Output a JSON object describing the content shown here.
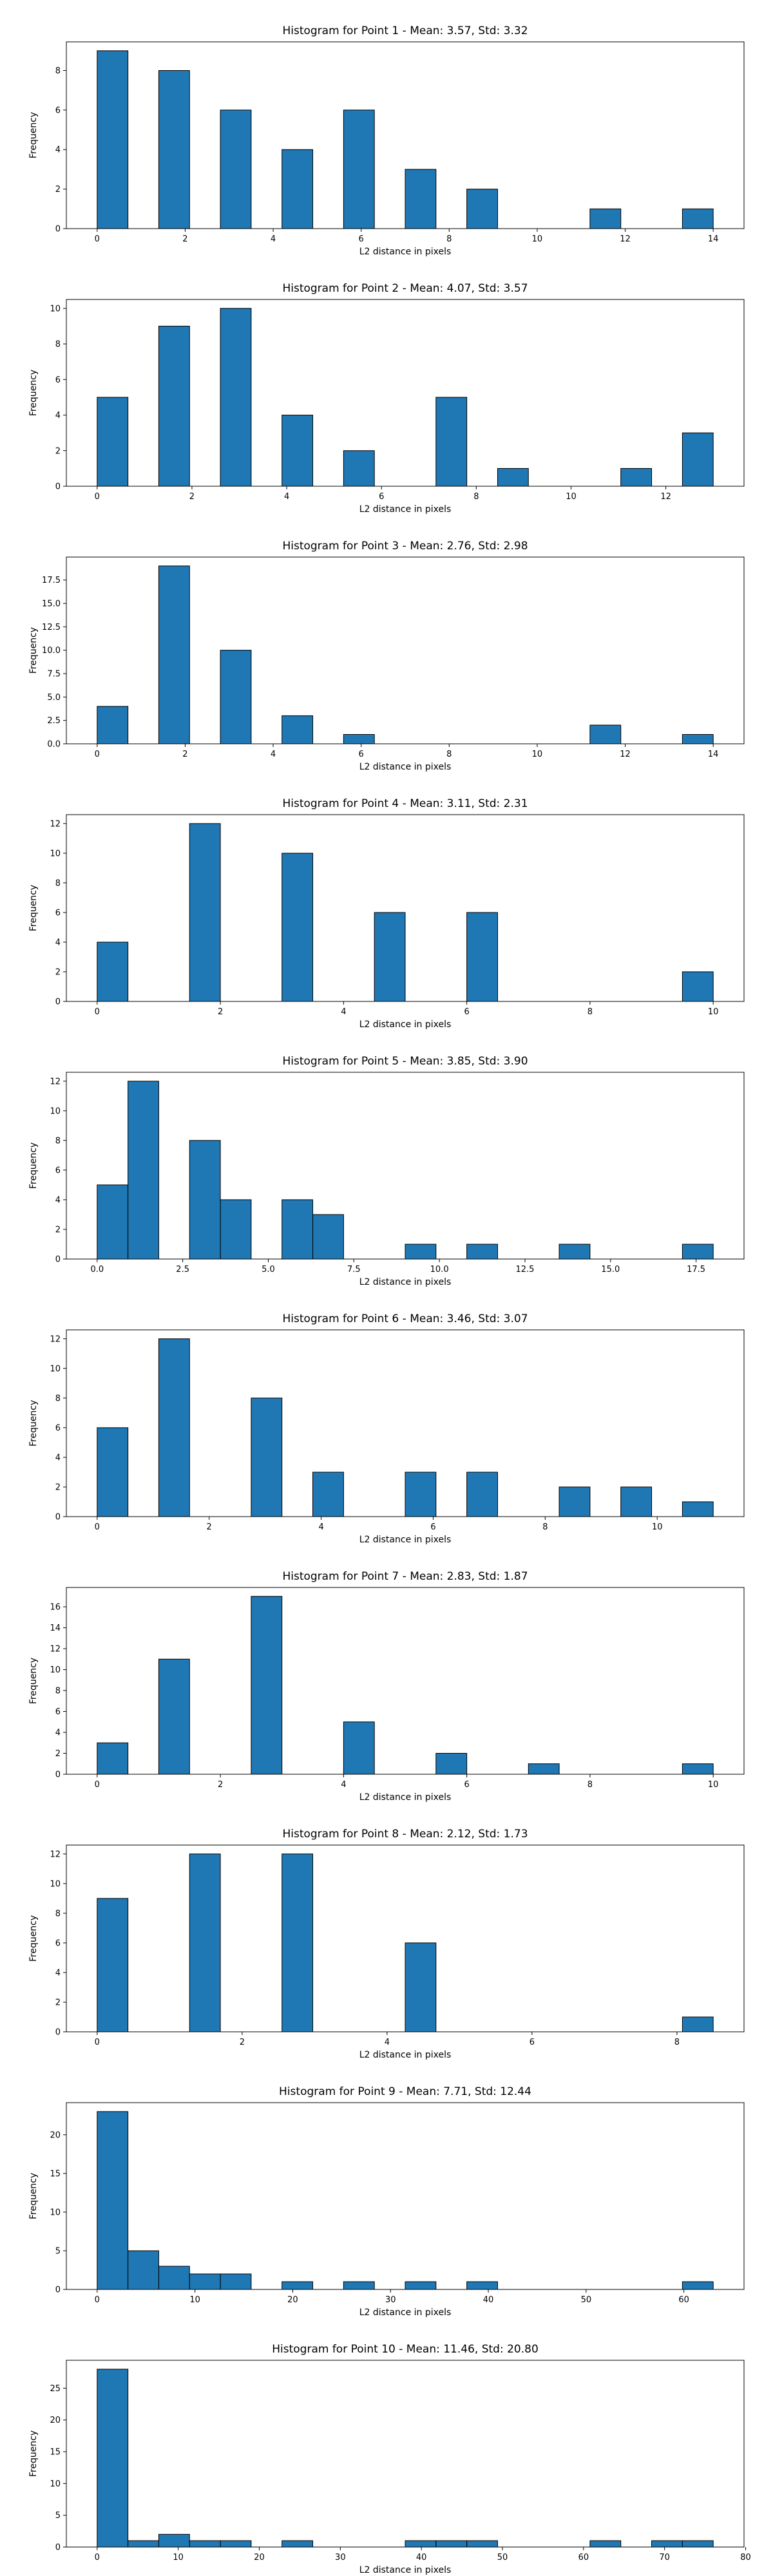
{
  "chart_data": [
    {
      "type": "bar",
      "title": "Histogram for Point 1 - Mean: 3.57, Std: 3.32",
      "xlabel": "L2 distance in pixels",
      "ylabel": "Frequency",
      "bar_color": "#1f77b4",
      "bins": [
        [
          0.0,
          0.7,
          9
        ],
        [
          1.4,
          2.1,
          8
        ],
        [
          2.8,
          3.5,
          6
        ],
        [
          4.2,
          4.9,
          4
        ],
        [
          5.6,
          6.3,
          6
        ],
        [
          7.0,
          7.7,
          3
        ],
        [
          8.4,
          9.1,
          2
        ],
        [
          11.2,
          11.9,
          1
        ],
        [
          13.3,
          14.0,
          1
        ]
      ],
      "xlim": [
        -0.7,
        14.7
      ],
      "ylim": [
        0,
        9.45
      ],
      "xticks": [
        0,
        2,
        4,
        6,
        8,
        10,
        12,
        14
      ],
      "yticks": [
        0,
        2,
        4,
        6,
        8
      ]
    },
    {
      "type": "bar",
      "title": "Histogram for Point 2 - Mean: 4.07, Std: 3.57",
      "xlabel": "L2 distance in pixels",
      "ylabel": "Frequency",
      "bar_color": "#1f77b4",
      "bins": [
        [
          0.0,
          0.65,
          5
        ],
        [
          1.3,
          1.95,
          9
        ],
        [
          2.6,
          3.25,
          10
        ],
        [
          3.9,
          4.55,
          4
        ],
        [
          5.2,
          5.85,
          2
        ],
        [
          7.15,
          7.8,
          5
        ],
        [
          8.45,
          9.1,
          1
        ],
        [
          11.05,
          11.7,
          1
        ],
        [
          12.35,
          13.0,
          3
        ]
      ],
      "xlim": [
        -0.65,
        13.65
      ],
      "ylim": [
        0,
        10.5
      ],
      "xticks": [
        0,
        2,
        4,
        6,
        8,
        10,
        12
      ],
      "yticks": [
        0,
        2,
        4,
        6,
        8,
        10
      ]
    },
    {
      "type": "bar",
      "title": "Histogram for Point 3 - Mean: 2.76, Std: 2.98",
      "xlabel": "L2 distance in pixels",
      "ylabel": "Frequency",
      "bar_color": "#1f77b4",
      "bins": [
        [
          0.0,
          0.7,
          4
        ],
        [
          1.4,
          2.1,
          19
        ],
        [
          2.8,
          3.5,
          10
        ],
        [
          4.2,
          4.9,
          3
        ],
        [
          5.6,
          6.3,
          1
        ],
        [
          11.2,
          11.9,
          2
        ],
        [
          13.3,
          14.0,
          1
        ]
      ],
      "xlim": [
        -0.7,
        14.7
      ],
      "ylim": [
        0,
        19.95
      ],
      "xticks": [
        0,
        2,
        4,
        6,
        8,
        10,
        12,
        14
      ],
      "yticks": [
        0.0,
        2.5,
        5.0,
        7.5,
        10.0,
        12.5,
        15.0,
        17.5
      ],
      "ytick_decimals": 1
    },
    {
      "type": "bar",
      "title": "Histogram for Point 4 - Mean: 3.11, Std: 2.31",
      "xlabel": "L2 distance in pixels",
      "ylabel": "Frequency",
      "bar_color": "#1f77b4",
      "bins": [
        [
          0.0,
          0.5,
          4
        ],
        [
          1.5,
          2.0,
          12
        ],
        [
          3.0,
          3.5,
          10
        ],
        [
          4.5,
          5.0,
          6
        ],
        [
          6.0,
          6.5,
          6
        ],
        [
          9.5,
          10.0,
          2
        ]
      ],
      "xlim": [
        -0.5,
        10.5
      ],
      "ylim": [
        0,
        12.6
      ],
      "xticks": [
        0,
        2,
        4,
        6,
        8,
        10
      ],
      "yticks": [
        0,
        2,
        4,
        6,
        8,
        10,
        12
      ]
    },
    {
      "type": "bar",
      "title": "Histogram for Point 5 - Mean: 3.85, Std: 3.90",
      "xlabel": "L2 distance in pixels",
      "ylabel": "Frequency",
      "bar_color": "#1f77b4",
      "bins": [
        [
          0.0,
          0.9,
          5
        ],
        [
          0.9,
          1.8,
          12
        ],
        [
          2.7,
          3.6,
          8
        ],
        [
          3.6,
          4.5,
          4
        ],
        [
          5.4,
          6.3,
          4
        ],
        [
          6.3,
          7.2,
          3
        ],
        [
          9.0,
          9.9,
          1
        ],
        [
          10.8,
          11.7,
          1
        ],
        [
          13.5,
          14.4,
          1
        ],
        [
          17.1,
          18.0,
          1
        ]
      ],
      "xlim": [
        -0.9,
        18.9
      ],
      "ylim": [
        0,
        12.6
      ],
      "xticks": [
        0.0,
        2.5,
        5.0,
        7.5,
        10.0,
        12.5,
        15.0,
        17.5
      ],
      "yticks": [
        0,
        2,
        4,
        6,
        8,
        10,
        12
      ],
      "xtick_decimals": 1
    },
    {
      "type": "bar",
      "title": "Histogram for Point 6 - Mean: 3.46, Std: 3.07",
      "xlabel": "L2 distance in pixels",
      "ylabel": "Frequency",
      "bar_color": "#1f77b4",
      "bins": [
        [
          0.0,
          0.55,
          6
        ],
        [
          1.1,
          1.65,
          12
        ],
        [
          2.75,
          3.3,
          8
        ],
        [
          3.85,
          4.4,
          3
        ],
        [
          5.5,
          6.05,
          3
        ],
        [
          6.6,
          7.15,
          3
        ],
        [
          8.25,
          8.8,
          2
        ],
        [
          9.35,
          9.9,
          2
        ],
        [
          10.45,
          11.0,
          1
        ]
      ],
      "xlim": [
        -0.55,
        11.55
      ],
      "ylim": [
        0,
        12.6
      ],
      "xticks": [
        0,
        2,
        4,
        6,
        8,
        10
      ],
      "yticks": [
        0,
        2,
        4,
        6,
        8,
        10,
        12
      ]
    },
    {
      "type": "bar",
      "title": "Histogram for Point 7 - Mean: 2.83, Std: 1.87",
      "xlabel": "L2 distance in pixels",
      "ylabel": "Frequency",
      "bar_color": "#1f77b4",
      "bins": [
        [
          0.0,
          0.5,
          3
        ],
        [
          1.0,
          1.5,
          11
        ],
        [
          2.5,
          3.0,
          17
        ],
        [
          4.0,
          4.5,
          5
        ],
        [
          5.5,
          6.0,
          2
        ],
        [
          7.0,
          7.5,
          1
        ],
        [
          9.5,
          10.0,
          1
        ]
      ],
      "xlim": [
        -0.5,
        10.5
      ],
      "ylim": [
        0,
        17.85
      ],
      "xticks": [
        0,
        2,
        4,
        6,
        8,
        10
      ],
      "yticks": [
        0,
        2,
        4,
        6,
        8,
        10,
        12,
        14,
        16
      ]
    },
    {
      "type": "bar",
      "title": "Histogram for Point 8 - Mean: 2.12, Std: 1.73",
      "xlabel": "L2 distance in pixels",
      "ylabel": "Frequency",
      "bar_color": "#1f77b4",
      "bins": [
        [
          0.0,
          0.425,
          9
        ],
        [
          1.275,
          1.7,
          12
        ],
        [
          2.55,
          2.975,
          12
        ],
        [
          4.25,
          4.675,
          6
        ],
        [
          8.075,
          8.5,
          1
        ]
      ],
      "xlim": [
        -0.425,
        8.925
      ],
      "ylim": [
        0,
        12.6
      ],
      "xticks": [
        0,
        2,
        4,
        6,
        8
      ],
      "yticks": [
        0,
        2,
        4,
        6,
        8,
        10,
        12
      ]
    },
    {
      "type": "bar",
      "title": "Histogram for Point 9 - Mean: 7.71, Std: 12.44",
      "xlabel": "L2 distance in pixels",
      "ylabel": "Frequency",
      "bar_color": "#1f77b4",
      "bins": [
        [
          0.0,
          3.15,
          23
        ],
        [
          3.15,
          6.3,
          5
        ],
        [
          6.3,
          9.45,
          3
        ],
        [
          9.45,
          12.6,
          2
        ],
        [
          12.6,
          15.75,
          2
        ],
        [
          18.9,
          22.05,
          1
        ],
        [
          25.2,
          28.35,
          1
        ],
        [
          31.5,
          34.65,
          1
        ],
        [
          37.8,
          40.95,
          1
        ],
        [
          59.85,
          63.0,
          1
        ]
      ],
      "xlim": [
        -3.15,
        66.15
      ],
      "ylim": [
        0,
        24.15
      ],
      "xticks": [
        0,
        10,
        20,
        30,
        40,
        50,
        60
      ],
      "yticks": [
        0,
        5,
        10,
        15,
        20
      ]
    },
    {
      "type": "bar",
      "title": "Histogram for Point 10 - Mean: 11.46, Std: 20.80",
      "xlabel": "L2 distance in pixels",
      "ylabel": "Frequency",
      "bar_color": "#1f77b4",
      "bins": [
        [
          0.0,
          3.8,
          28
        ],
        [
          3.8,
          7.6,
          1
        ],
        [
          7.6,
          11.4,
          2
        ],
        [
          11.4,
          15.2,
          1
        ],
        [
          15.2,
          19.0,
          1
        ],
        [
          22.8,
          26.6,
          1
        ],
        [
          38.0,
          41.8,
          1
        ],
        [
          41.8,
          45.6,
          1
        ],
        [
          45.6,
          49.4,
          1
        ],
        [
          60.8,
          64.6,
          1
        ],
        [
          68.4,
          72.2,
          1
        ],
        [
          72.2,
          76.0,
          1
        ]
      ],
      "xlim": [
        -3.8,
        79.8
      ],
      "ylim": [
        0,
        29.4
      ],
      "xticks": [
        0,
        10,
        20,
        30,
        40,
        50,
        60,
        70,
        80
      ],
      "yticks": [
        0,
        5,
        10,
        15,
        20,
        25
      ]
    }
  ]
}
